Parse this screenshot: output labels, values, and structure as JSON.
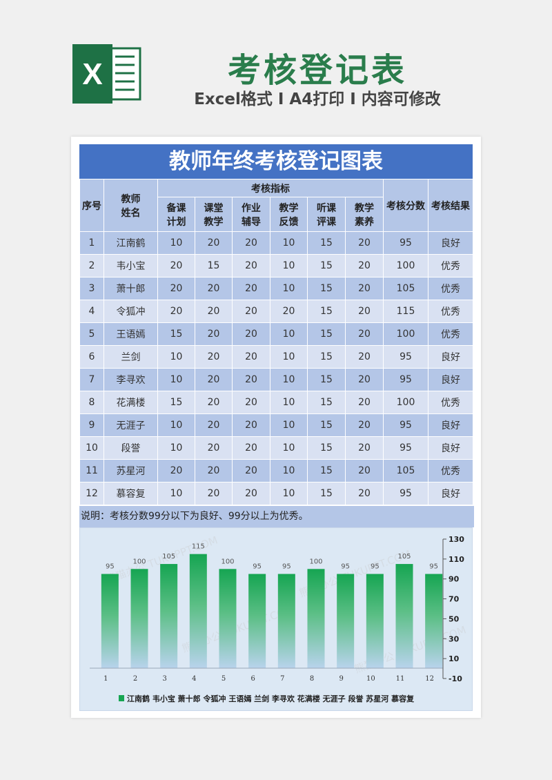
{
  "header": {
    "logo_letter": "X",
    "title": "考核登记表",
    "subtitle": "Excel格式 I A4打印 I 内容可修改",
    "brand_color": "#2a7d4c"
  },
  "sheet": {
    "title": "教师年终考核登记图表",
    "headers": {
      "index": "序号",
      "name_line1": "教师",
      "name_line2": "姓名",
      "group": "考核指标",
      "c1_line1": "备课",
      "c1_line2": "计划",
      "c2_line1": "课堂",
      "c2_line2": "教学",
      "c3_line1": "作业",
      "c3_line2": "辅导",
      "c4_line1": "教学",
      "c4_line2": "反馈",
      "c5_line1": "听课",
      "c5_line2": "评课",
      "c6_line1": "教学",
      "c6_line2": "素养",
      "score": "考核分数",
      "result": "考核结果"
    },
    "rows": [
      {
        "no": "1",
        "name": "江南鹤",
        "v": [
          "10",
          "20",
          "20",
          "10",
          "15",
          "20"
        ],
        "score": "95",
        "result": "良好"
      },
      {
        "no": "2",
        "name": "韦小宝",
        "v": [
          "20",
          "15",
          "20",
          "10",
          "15",
          "20"
        ],
        "score": "100",
        "result": "优秀"
      },
      {
        "no": "3",
        "name": "萧十郎",
        "v": [
          "20",
          "20",
          "20",
          "10",
          "15",
          "20"
        ],
        "score": "105",
        "result": "优秀"
      },
      {
        "no": "4",
        "name": "令狐冲",
        "v": [
          "20",
          "20",
          "20",
          "20",
          "15",
          "20"
        ],
        "score": "115",
        "result": "优秀"
      },
      {
        "no": "5",
        "name": "王语嫣",
        "v": [
          "15",
          "20",
          "20",
          "10",
          "15",
          "20"
        ],
        "score": "100",
        "result": "优秀"
      },
      {
        "no": "6",
        "name": "兰剑",
        "v": [
          "10",
          "20",
          "20",
          "10",
          "15",
          "20"
        ],
        "score": "95",
        "result": "良好"
      },
      {
        "no": "7",
        "name": "李寻欢",
        "v": [
          "10",
          "20",
          "20",
          "10",
          "15",
          "20"
        ],
        "score": "95",
        "result": "良好"
      },
      {
        "no": "8",
        "name": "花满楼",
        "v": [
          "15",
          "20",
          "20",
          "10",
          "15",
          "20"
        ],
        "score": "100",
        "result": "优秀"
      },
      {
        "no": "9",
        "name": "无涯子",
        "v": [
          "10",
          "20",
          "20",
          "10",
          "15",
          "20"
        ],
        "score": "95",
        "result": "良好"
      },
      {
        "no": "10",
        "name": "段誉",
        "v": [
          "10",
          "20",
          "20",
          "10",
          "15",
          "20"
        ],
        "score": "95",
        "result": "良好"
      },
      {
        "no": "11",
        "name": "苏星河",
        "v": [
          "20",
          "20",
          "20",
          "10",
          "15",
          "20"
        ],
        "score": "105",
        "result": "优秀"
      },
      {
        "no": "12",
        "name": "慕容复",
        "v": [
          "10",
          "20",
          "20",
          "10",
          "15",
          "20"
        ],
        "score": "95",
        "result": "良好"
      }
    ],
    "note": "说明：考核分数99分以下为良好、99分以上为优秀。"
  },
  "chart_data": {
    "type": "bar",
    "categories": [
      "1",
      "2",
      "3",
      "4",
      "5",
      "6",
      "7",
      "8",
      "9",
      "10",
      "11",
      "12"
    ],
    "series": [
      {
        "name": "江南鹤 韦小宝 萧十郎 令狐冲 王语嫣 兰剑 李寻欢 花满楼 无涯子 段誉 苏星河 慕容复",
        "values": [
          95,
          100,
          105,
          115,
          100,
          95,
          95,
          100,
          95,
          95,
          105,
          95
        ]
      }
    ],
    "ylim": [
      -10,
      130
    ],
    "yticks": [
      130,
      110,
      90,
      70,
      50,
      30,
      10,
      -10
    ],
    "y_axis_position": "right",
    "legend_position": "bottom",
    "bar_color_top": "#16a552",
    "bar_color_bottom": "#b8d3ec",
    "title": "",
    "xlabel": "",
    "ylabel": ""
  },
  "watermark": "熊猫办公 TUKUPPT.COM"
}
